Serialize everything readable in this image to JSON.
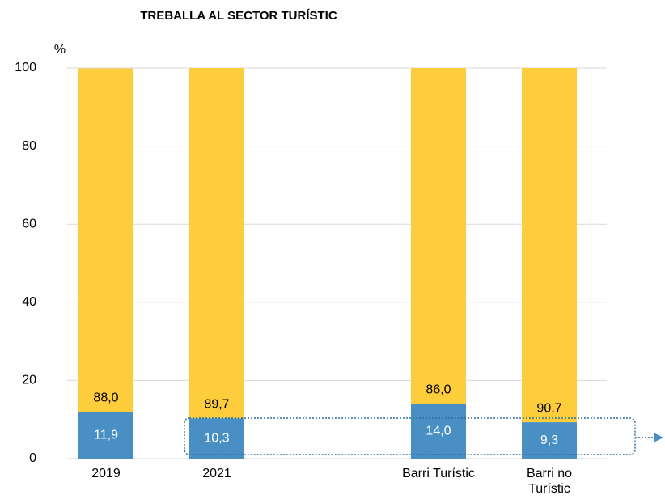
{
  "chart_data": {
    "type": "stacked_bar",
    "title": "TREBALLA AL SECTOR TURÍSTIC",
    "y_label": "%",
    "categories": [
      "2019",
      "2021",
      null,
      "Barri Turístic",
      "Barri no Turístic"
    ],
    "series": [
      {
        "color": "#4a8fc4",
        "values": [
          11.9,
          10.3,
          null,
          14.0,
          9.3
        ],
        "value_labels": [
          "11,9",
          "10,3",
          null,
          "14,0",
          "9,3"
        ]
      },
      {
        "color": "#fdcd3c",
        "values": [
          88.0,
          89.7,
          null,
          86.0,
          90.7
        ],
        "value_labels": [
          "88,0",
          "89,7",
          null,
          "86,0",
          "90,7"
        ]
      }
    ],
    "ylim": [
      0,
      100
    ],
    "yticks": [
      0,
      20,
      40,
      60,
      80,
      100
    ],
    "grid": true
  }
}
